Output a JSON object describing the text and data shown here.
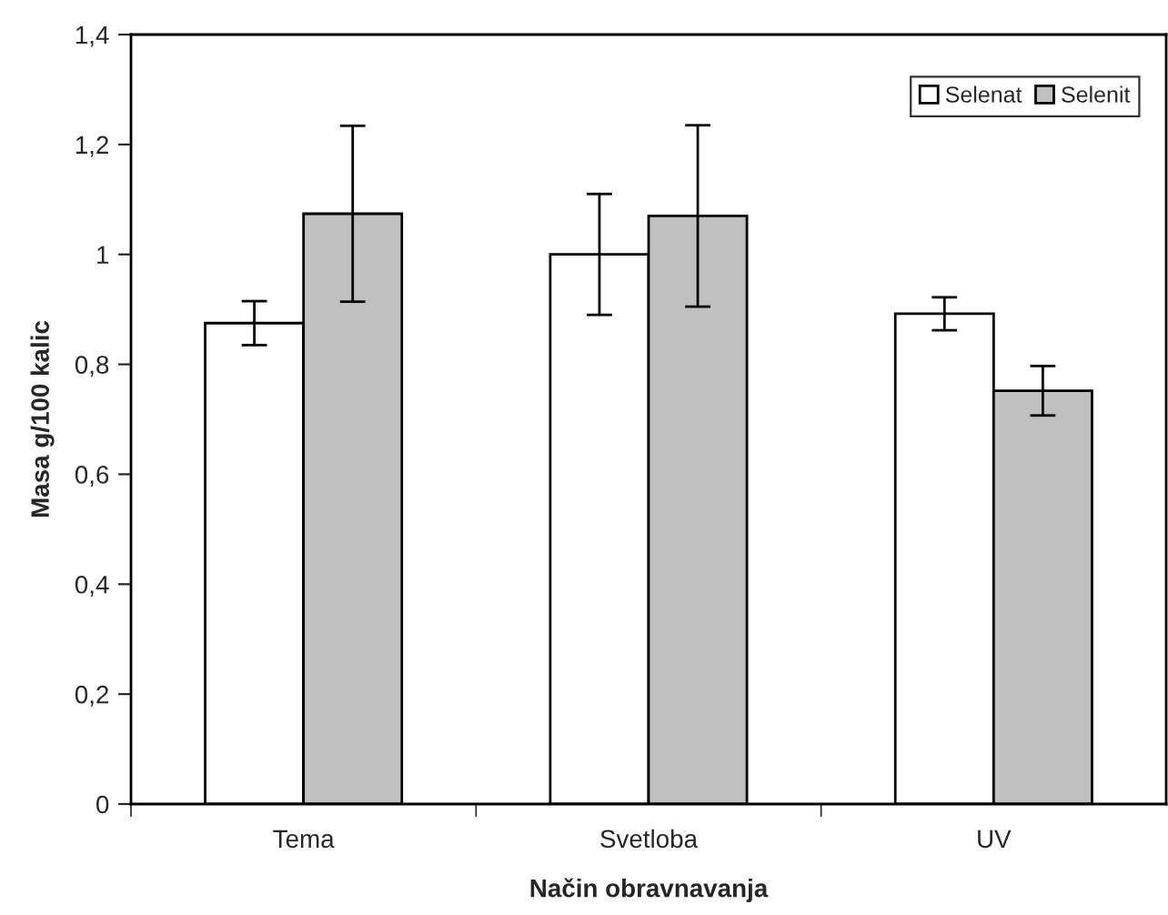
{
  "chart_data": {
    "type": "bar",
    "xlabel": "Način obravnavanja",
    "ylabel": "Masa g/100 kalic",
    "categories": [
      "Tema",
      "Svetloba",
      "UV"
    ],
    "series": [
      {
        "name": "Selenat",
        "color": "#ffffff",
        "values": [
          0.875,
          1.0,
          0.892
        ],
        "errors": [
          0.04,
          0.11,
          0.03
        ]
      },
      {
        "name": "Selenit",
        "color": "#c0c0c0",
        "values": [
          1.074,
          1.07,
          0.752
        ],
        "errors": [
          0.16,
          0.165,
          0.045
        ]
      }
    ],
    "ylim": [
      0,
      1.4
    ],
    "yticks": [
      0,
      {
        "value": 0.2,
        "label": "0,2"
      },
      {
        "value": 0.4,
        "label": "0,4"
      },
      {
        "value": 0.6,
        "label": "0,6"
      },
      {
        "value": 0.8,
        "label": "0,8"
      },
      1,
      {
        "value": 1.2,
        "label": "1,2"
      },
      {
        "value": 1.4,
        "label": "1,4"
      }
    ],
    "grid": false,
    "legend": "top right"
  }
}
